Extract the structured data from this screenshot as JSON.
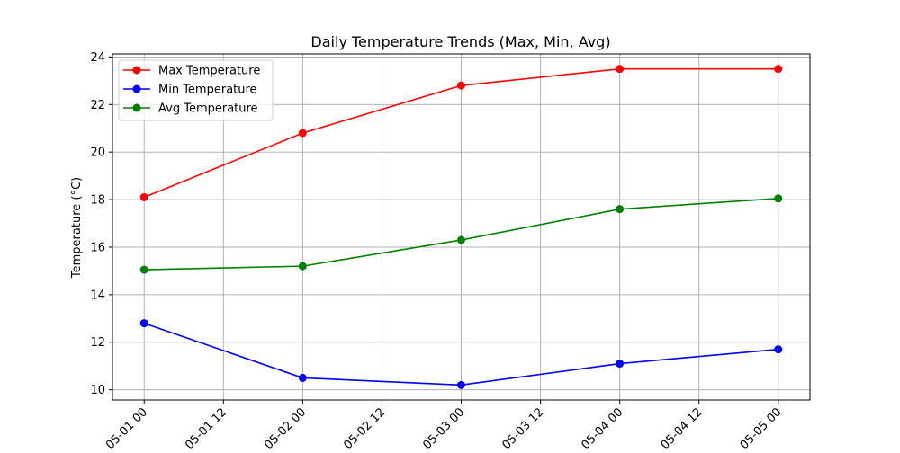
{
  "chart_data": {
    "type": "line",
    "title": "Daily Temperature Trends (Max, Min, Avg)",
    "xlabel": "",
    "ylabel": "Temperature (°C)",
    "x_ticks": [
      "05-01 00",
      "05-01 12",
      "05-02 00",
      "05-02 12",
      "05-03 00",
      "05-03 12",
      "05-04 00",
      "05-04 12",
      "05-05 00"
    ],
    "x": [
      "2023-05-01 00:00",
      "2023-05-02 00:00",
      "2023-05-03 00:00",
      "2023-05-04 00:00",
      "2023-05-05 00:00"
    ],
    "xlim": [
      "2023-04-30 19:12",
      "2023-05-05 04:48"
    ],
    "ylim": [
      9.57,
      24.13
    ],
    "y_ticks": [
      10,
      12,
      14,
      16,
      18,
      20,
      22,
      24
    ],
    "grid": true,
    "legend_position": "top-left",
    "series": [
      {
        "name": "Max Temperature",
        "color": "#ff0000",
        "marker": "circle",
        "values": [
          18.1,
          20.8,
          22.8,
          23.5,
          23.5
        ]
      },
      {
        "name": "Min Temperature",
        "color": "#0000ff",
        "marker": "circle",
        "values": [
          12.8,
          10.5,
          10.2,
          11.1,
          11.7
        ]
      },
      {
        "name": "Avg Temperature",
        "color": "#008000",
        "marker": "circle",
        "values": [
          15.05,
          15.2,
          16.3,
          17.6,
          18.05
        ]
      }
    ]
  }
}
